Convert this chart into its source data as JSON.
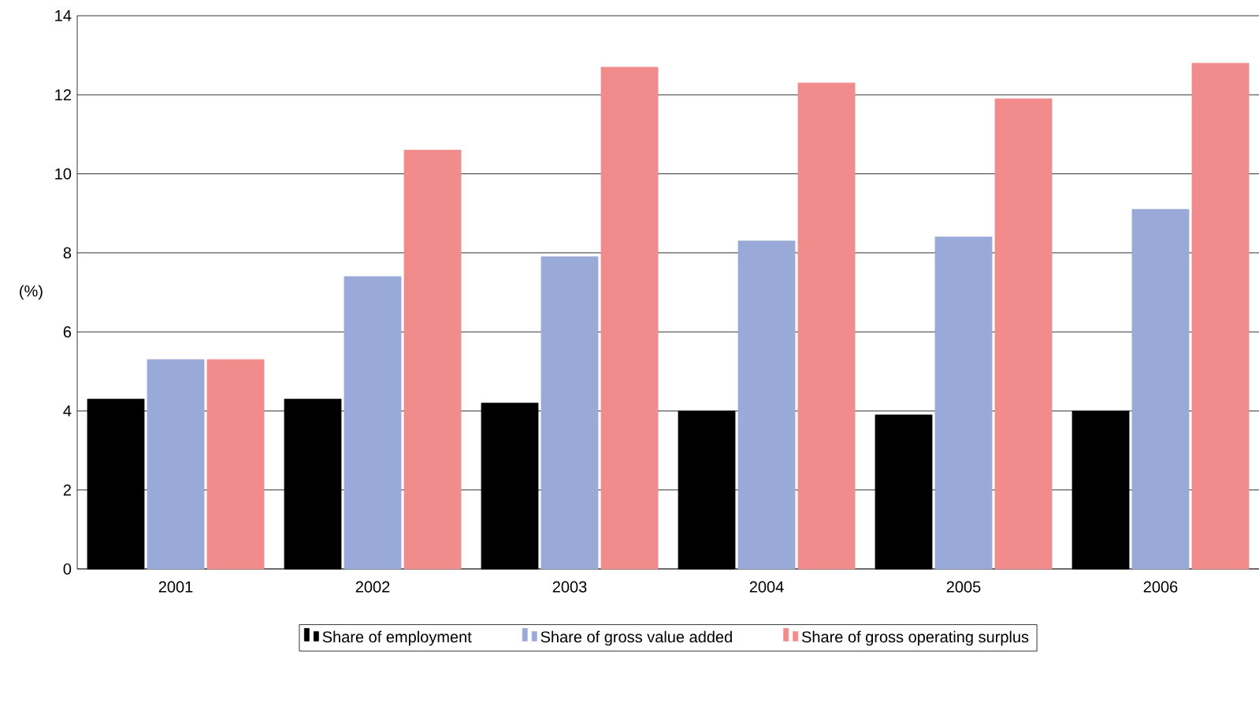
{
  "chart_data": {
    "type": "bar",
    "ylabel": "(%)",
    "categories": [
      "2001",
      "2002",
      "2003",
      "2004",
      "2005",
      "2006"
    ],
    "series": [
      {
        "name": "Share of employment",
        "color": "#000000",
        "values": [
          4.3,
          4.3,
          4.2,
          4.0,
          3.9,
          4.0
        ]
      },
      {
        "name": "Share of gross value added",
        "color": "#9aaad8",
        "values": [
          5.3,
          7.4,
          7.9,
          8.3,
          8.4,
          9.1
        ]
      },
      {
        "name": "Share of gross operating surplus",
        "color": "#f28c8c",
        "values": [
          5.3,
          10.6,
          12.7,
          12.3,
          11.9,
          12.8
        ]
      }
    ],
    "ylim": [
      0,
      14
    ],
    "yticks": [
      0,
      2,
      4,
      6,
      8,
      10,
      12,
      14
    ],
    "grid": "y",
    "legend": "bottom"
  }
}
